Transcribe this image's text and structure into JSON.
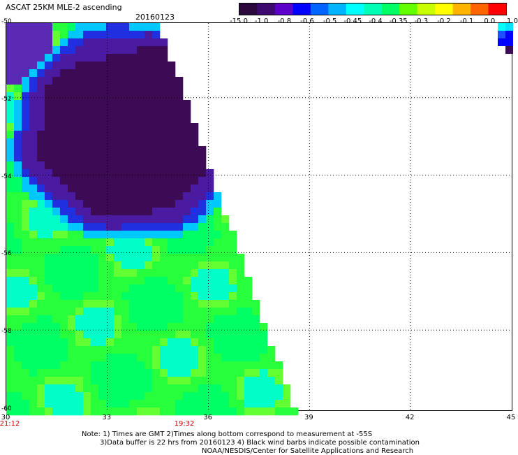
{
  "title": "ASCAT 25KM MLE-2 ascending",
  "date": "20160123",
  "colorbar": {
    "colors": [
      "#2a0a3d",
      "#3d0a6e",
      "#5a00c8",
      "#0000ff",
      "#0064ff",
      "#00b4ff",
      "#00ffff",
      "#00ffb4",
      "#00ff64",
      "#64ff00",
      "#c8ff00",
      "#ffff00",
      "#ffb400",
      "#ff6400",
      "#ff0000"
    ],
    "labels": [
      "-15.0",
      "-1.0",
      "-0.8",
      "-0.6",
      "-0.5",
      "-0.45",
      "-0.4",
      "-0.35",
      "-0.3",
      "-0.2",
      "-0.1",
      "0.0",
      "1.0"
    ]
  },
  "map": {
    "lat_labels": [
      "-50",
      "-52",
      "-54",
      "-56",
      "-58",
      "-60"
    ],
    "lon_labels": [
      "30",
      "33",
      "36",
      "39",
      "42",
      "45"
    ],
    "lat_range": [
      -60,
      -50
    ],
    "lon_range": [
      30,
      45
    ]
  },
  "times": [
    "21:12",
    "19:32"
  ],
  "notes": [
    "Note: 1) Times are GMT 2)Times along bottom correspond to measurement at -55S",
    "3)Data buffer is 22 hrs from 20160123 4) Black wind barbs indicate possible contamination",
    "NOAA/NESDIS/Center for Satellite Applications and Research"
  ]
}
